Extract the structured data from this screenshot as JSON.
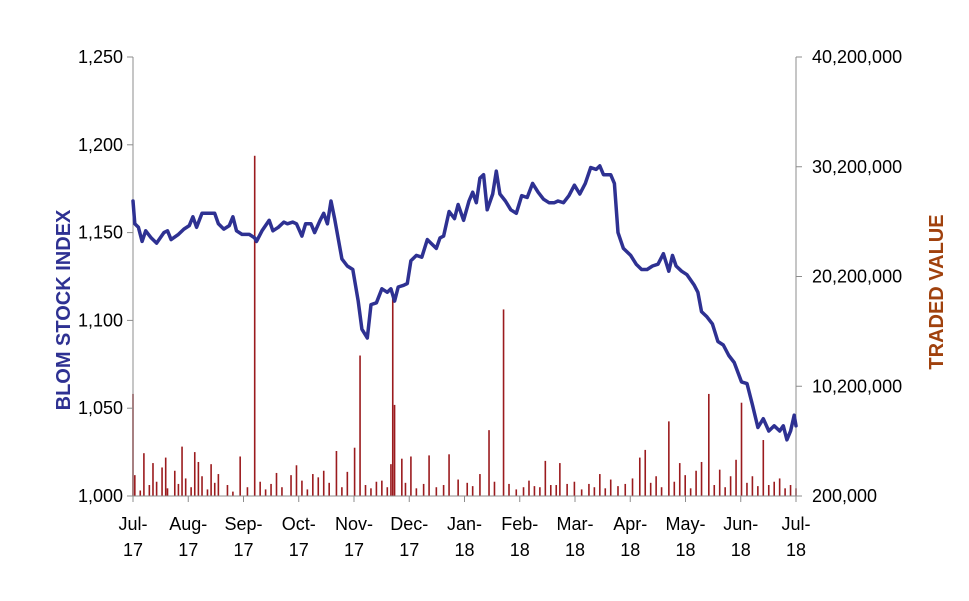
{
  "chart_data": {
    "type": "line+bar",
    "y_left": {
      "label": "BLOM STOCK INDEX",
      "range": [
        1000,
        1250
      ],
      "ticks": [
        "1,000",
        "1,050",
        "1,100",
        "1,150",
        "1,200",
        "1,250"
      ],
      "tick_values": [
        1000,
        1050,
        1100,
        1150,
        1200,
        1250
      ]
    },
    "y_right": {
      "label": "TRADED VALUE",
      "range": [
        200000,
        40200000
      ],
      "ticks": [
        "200,000",
        "10,200,000",
        "20,200,000",
        "30,200,000",
        "40,200,000"
      ],
      "tick_values": [
        200000,
        10200000,
        20200000,
        30200000,
        40200000
      ]
    },
    "x_ticks": [
      [
        "Jul-",
        "17"
      ],
      [
        "Aug-",
        "17"
      ],
      [
        "Sep-",
        "17"
      ],
      [
        "Oct-",
        "17"
      ],
      [
        "Nov-",
        "17"
      ],
      [
        "Dec-",
        "17"
      ],
      [
        "Jan-",
        "18"
      ],
      [
        "Feb-",
        "18"
      ],
      [
        "Mar-",
        "18"
      ],
      [
        "Apr-",
        "18"
      ],
      [
        "May-",
        "18"
      ],
      [
        "Jun-",
        "18"
      ],
      [
        "Jul-",
        "18"
      ]
    ],
    "x_range": [
      "2017-07-01",
      "2018-07-01"
    ],
    "series": [
      {
        "name": "BLOM STOCK INDEX",
        "kind": "line",
        "axis": "left",
        "color": "#2E3192",
        "points": [
          [
            "2017-07-01",
            1168
          ],
          [
            "2017-07-02",
            1155
          ],
          [
            "2017-07-04",
            1153
          ],
          [
            "2017-07-06",
            1145
          ],
          [
            "2017-07-08",
            1151
          ],
          [
            "2017-07-11",
            1147
          ],
          [
            "2017-07-14",
            1144
          ],
          [
            "2017-07-18",
            1150
          ],
          [
            "2017-07-20",
            1151
          ],
          [
            "2017-07-22",
            1146
          ],
          [
            "2017-07-26",
            1149
          ],
          [
            "2017-07-29",
            1152
          ],
          [
            "2017-08-01",
            1154
          ],
          [
            "2017-08-03",
            1159
          ],
          [
            "2017-08-05",
            1153
          ],
          [
            "2017-08-08",
            1161
          ],
          [
            "2017-08-12",
            1161
          ],
          [
            "2017-08-15",
            1161
          ],
          [
            "2017-08-17",
            1155
          ],
          [
            "2017-08-20",
            1152
          ],
          [
            "2017-08-23",
            1154
          ],
          [
            "2017-08-25",
            1159
          ],
          [
            "2017-08-27",
            1151
          ],
          [
            "2017-08-30",
            1149
          ],
          [
            "2017-09-03",
            1149
          ],
          [
            "2017-09-06",
            1147
          ],
          [
            "2017-09-07",
            1145
          ],
          [
            "2017-09-10",
            1151
          ],
          [
            "2017-09-14",
            1157
          ],
          [
            "2017-09-16",
            1151
          ],
          [
            "2017-09-19",
            1153
          ],
          [
            "2017-09-22",
            1156
          ],
          [
            "2017-09-24",
            1155
          ],
          [
            "2017-09-27",
            1156
          ],
          [
            "2017-09-29",
            1155
          ],
          [
            "2017-10-02",
            1148
          ],
          [
            "2017-10-04",
            1155
          ],
          [
            "2017-10-07",
            1155
          ],
          [
            "2017-10-09",
            1150
          ],
          [
            "2017-10-12",
            1157
          ],
          [
            "2017-10-14",
            1161
          ],
          [
            "2017-10-16",
            1155
          ],
          [
            "2017-10-18",
            1168
          ],
          [
            "2017-10-20",
            1158
          ],
          [
            "2017-10-24",
            1135
          ],
          [
            "2017-10-27",
            1131
          ],
          [
            "2017-10-30",
            1129
          ],
          [
            "2017-11-02",
            1111
          ],
          [
            "2017-11-04",
            1095
          ],
          [
            "2017-11-07",
            1090
          ],
          [
            "2017-11-09",
            1109
          ],
          [
            "2017-11-12",
            1110
          ],
          [
            "2017-11-15",
            1118
          ],
          [
            "2017-11-18",
            1116
          ],
          [
            "2017-11-20",
            1118
          ],
          [
            "2017-11-22",
            1111
          ],
          [
            "2017-11-24",
            1119
          ],
          [
            "2017-11-27",
            1120
          ],
          [
            "2017-11-29",
            1121
          ],
          [
            "2017-12-01",
            1134
          ],
          [
            "2017-12-04",
            1137
          ],
          [
            "2017-12-07",
            1136
          ],
          [
            "2017-12-10",
            1146
          ],
          [
            "2017-12-12",
            1144
          ],
          [
            "2017-12-15",
            1141
          ],
          [
            "2017-12-17",
            1147
          ],
          [
            "2017-12-19",
            1148
          ],
          [
            "2017-12-22",
            1162
          ],
          [
            "2017-12-25",
            1158
          ],
          [
            "2017-12-27",
            1166
          ],
          [
            "2017-12-30",
            1157
          ],
          [
            "2018-01-02",
            1168
          ],
          [
            "2018-01-04",
            1173
          ],
          [
            "2018-01-06",
            1167
          ],
          [
            "2018-01-08",
            1181
          ],
          [
            "2018-01-10",
            1183
          ],
          [
            "2018-01-12",
            1163
          ],
          [
            "2018-01-15",
            1172
          ],
          [
            "2018-01-17",
            1185
          ],
          [
            "2018-01-19",
            1172
          ],
          [
            "2018-01-22",
            1168
          ],
          [
            "2018-01-25",
            1163
          ],
          [
            "2018-01-28",
            1161
          ],
          [
            "2018-01-31",
            1171
          ],
          [
            "2018-02-03",
            1170
          ],
          [
            "2018-02-06",
            1178
          ],
          [
            "2018-02-09",
            1173
          ],
          [
            "2018-02-12",
            1169
          ],
          [
            "2018-02-15",
            1167
          ],
          [
            "2018-02-18",
            1167
          ],
          [
            "2018-02-20",
            1168
          ],
          [
            "2018-02-23",
            1167
          ],
          [
            "2018-02-26",
            1171
          ],
          [
            "2018-03-01",
            1177
          ],
          [
            "2018-03-04",
            1172
          ],
          [
            "2018-03-07",
            1178
          ],
          [
            "2018-03-10",
            1187
          ],
          [
            "2018-03-13",
            1186
          ],
          [
            "2018-03-15",
            1188
          ],
          [
            "2018-03-17",
            1183
          ],
          [
            "2018-03-21",
            1183
          ],
          [
            "2018-03-23",
            1178
          ],
          [
            "2018-03-25",
            1150
          ],
          [
            "2018-03-28",
            1141
          ],
          [
            "2018-04-01",
            1137
          ],
          [
            "2018-04-04",
            1132
          ],
          [
            "2018-04-07",
            1129
          ],
          [
            "2018-04-10",
            1129
          ],
          [
            "2018-04-13",
            1131
          ],
          [
            "2018-04-16",
            1132
          ],
          [
            "2018-04-19",
            1138
          ],
          [
            "2018-04-22",
            1128
          ],
          [
            "2018-04-24",
            1137
          ],
          [
            "2018-04-26",
            1131
          ],
          [
            "2018-04-29",
            1128
          ],
          [
            "2018-05-02",
            1126
          ],
          [
            "2018-05-06",
            1120
          ],
          [
            "2018-05-08",
            1116
          ],
          [
            "2018-05-10",
            1105
          ],
          [
            "2018-05-13",
            1102
          ],
          [
            "2018-05-16",
            1098
          ],
          [
            "2018-05-19",
            1088
          ],
          [
            "2018-05-22",
            1086
          ],
          [
            "2018-05-25",
            1080
          ],
          [
            "2018-05-28",
            1076
          ],
          [
            "2018-06-01",
            1065
          ],
          [
            "2018-06-04",
            1064
          ],
          [
            "2018-06-07",
            1052
          ],
          [
            "2018-06-10",
            1039
          ],
          [
            "2018-06-13",
            1044
          ],
          [
            "2018-06-16",
            1037
          ],
          [
            "2018-06-19",
            1040
          ],
          [
            "2018-06-22",
            1037
          ],
          [
            "2018-06-24",
            1040
          ],
          [
            "2018-06-26",
            1032
          ],
          [
            "2018-06-28",
            1037
          ],
          [
            "2018-06-30",
            1046
          ],
          [
            "2018-07-01",
            1040
          ]
        ]
      },
      {
        "name": "TRADED VALUE",
        "kind": "bar",
        "axis": "right",
        "color": "#9B1B1E",
        "points": [
          [
            "2017-07-01",
            9500000
          ],
          [
            "2017-07-02",
            2100000
          ],
          [
            "2017-07-05",
            700000
          ],
          [
            "2017-07-07",
            4100000
          ],
          [
            "2017-07-10",
            1200000
          ],
          [
            "2017-07-12",
            3200000
          ],
          [
            "2017-07-14",
            1500000
          ],
          [
            "2017-07-17",
            2800000
          ],
          [
            "2017-07-19",
            3700000
          ],
          [
            "2017-07-20",
            900000
          ],
          [
            "2017-07-24",
            2500000
          ],
          [
            "2017-07-26",
            1300000
          ],
          [
            "2017-07-28",
            4700000
          ],
          [
            "2017-07-30",
            1800000
          ],
          [
            "2017-08-02",
            1000000
          ],
          [
            "2017-08-04",
            4200000
          ],
          [
            "2017-08-06",
            3300000
          ],
          [
            "2017-08-08",
            2000000
          ],
          [
            "2017-08-11",
            800000
          ],
          [
            "2017-08-13",
            3100000
          ],
          [
            "2017-08-15",
            1400000
          ],
          [
            "2017-08-17",
            2200000
          ],
          [
            "2017-08-22",
            1200000
          ],
          [
            "2017-08-25",
            600000
          ],
          [
            "2017-08-29",
            3800000
          ],
          [
            "2017-09-02",
            1000000
          ],
          [
            "2017-09-06",
            31200000
          ],
          [
            "2017-09-09",
            1500000
          ],
          [
            "2017-09-12",
            800000
          ],
          [
            "2017-09-15",
            1300000
          ],
          [
            "2017-09-18",
            2300000
          ],
          [
            "2017-09-21",
            1000000
          ],
          [
            "2017-09-26",
            2100000
          ],
          [
            "2017-09-29",
            3000000
          ],
          [
            "2017-10-02",
            1600000
          ],
          [
            "2017-10-05",
            800000
          ],
          [
            "2017-10-08",
            2200000
          ],
          [
            "2017-10-11",
            1900000
          ],
          [
            "2017-10-14",
            2500000
          ],
          [
            "2017-10-17",
            1400000
          ],
          [
            "2017-10-21",
            4300000
          ],
          [
            "2017-10-24",
            1000000
          ],
          [
            "2017-10-27",
            2400000
          ],
          [
            "2017-10-31",
            4600000
          ],
          [
            "2017-11-03",
            13000000
          ],
          [
            "2017-11-06",
            1200000
          ],
          [
            "2017-11-09",
            900000
          ],
          [
            "2017-11-12",
            1500000
          ],
          [
            "2017-11-15",
            1600000
          ],
          [
            "2017-11-18",
            1000000
          ],
          [
            "2017-11-20",
            3100000
          ],
          [
            "2017-11-21",
            18500000
          ],
          [
            "2017-11-22",
            8500000
          ],
          [
            "2017-11-26",
            3600000
          ],
          [
            "2017-11-28",
            1400000
          ],
          [
            "2017-12-01",
            3800000
          ],
          [
            "2017-12-04",
            900000
          ],
          [
            "2017-12-08",
            1300000
          ],
          [
            "2017-12-11",
            3900000
          ],
          [
            "2017-12-15",
            1000000
          ],
          [
            "2017-12-19",
            1200000
          ],
          [
            "2017-12-22",
            4000000
          ],
          [
            "2017-12-27",
            1700000
          ],
          [
            "2018-01-01",
            1400000
          ],
          [
            "2018-01-04",
            1100000
          ],
          [
            "2018-01-08",
            2200000
          ],
          [
            "2018-01-13",
            6200000
          ],
          [
            "2018-01-16",
            1500000
          ],
          [
            "2018-01-21",
            17200000
          ],
          [
            "2018-01-24",
            1300000
          ],
          [
            "2018-01-28",
            800000
          ],
          [
            "2018-02-01",
            1000000
          ],
          [
            "2018-02-04",
            1600000
          ],
          [
            "2018-02-07",
            1100000
          ],
          [
            "2018-02-10",
            1000000
          ],
          [
            "2018-02-13",
            3400000
          ],
          [
            "2018-02-16",
            1200000
          ],
          [
            "2018-02-19",
            1200000
          ],
          [
            "2018-02-21",
            3200000
          ],
          [
            "2018-02-25",
            1300000
          ],
          [
            "2018-03-01",
            1500000
          ],
          [
            "2018-03-05",
            800000
          ],
          [
            "2018-03-09",
            1300000
          ],
          [
            "2018-03-12",
            1000000
          ],
          [
            "2018-03-15",
            2200000
          ],
          [
            "2018-03-18",
            900000
          ],
          [
            "2018-03-21",
            1700000
          ],
          [
            "2018-03-25",
            1100000
          ],
          [
            "2018-03-29",
            1300000
          ],
          [
            "2018-04-02",
            1800000
          ],
          [
            "2018-04-06",
            3700000
          ],
          [
            "2018-04-09",
            4400000
          ],
          [
            "2018-04-12",
            1400000
          ],
          [
            "2018-04-15",
            2000000
          ],
          [
            "2018-04-18",
            1000000
          ],
          [
            "2018-04-22",
            7000000
          ],
          [
            "2018-04-25",
            1500000
          ],
          [
            "2018-04-28",
            3200000
          ],
          [
            "2018-05-01",
            2100000
          ],
          [
            "2018-05-04",
            900000
          ],
          [
            "2018-05-07",
            2500000
          ],
          [
            "2018-05-10",
            3300000
          ],
          [
            "2018-05-14",
            9500000
          ],
          [
            "2018-05-17",
            1200000
          ],
          [
            "2018-05-20",
            2600000
          ],
          [
            "2018-05-23",
            1000000
          ],
          [
            "2018-05-26",
            2000000
          ],
          [
            "2018-05-29",
            3500000
          ],
          [
            "2018-06-01",
            8700000
          ],
          [
            "2018-06-04",
            1400000
          ],
          [
            "2018-06-07",
            2000000
          ],
          [
            "2018-06-10",
            1100000
          ],
          [
            "2018-06-13",
            5300000
          ],
          [
            "2018-06-16",
            1200000
          ],
          [
            "2018-06-19",
            1500000
          ],
          [
            "2018-06-22",
            1800000
          ],
          [
            "2018-06-25",
            900000
          ],
          [
            "2018-06-28",
            1200000
          ],
          [
            "2018-07-01",
            900000
          ]
        ]
      }
    ]
  }
}
